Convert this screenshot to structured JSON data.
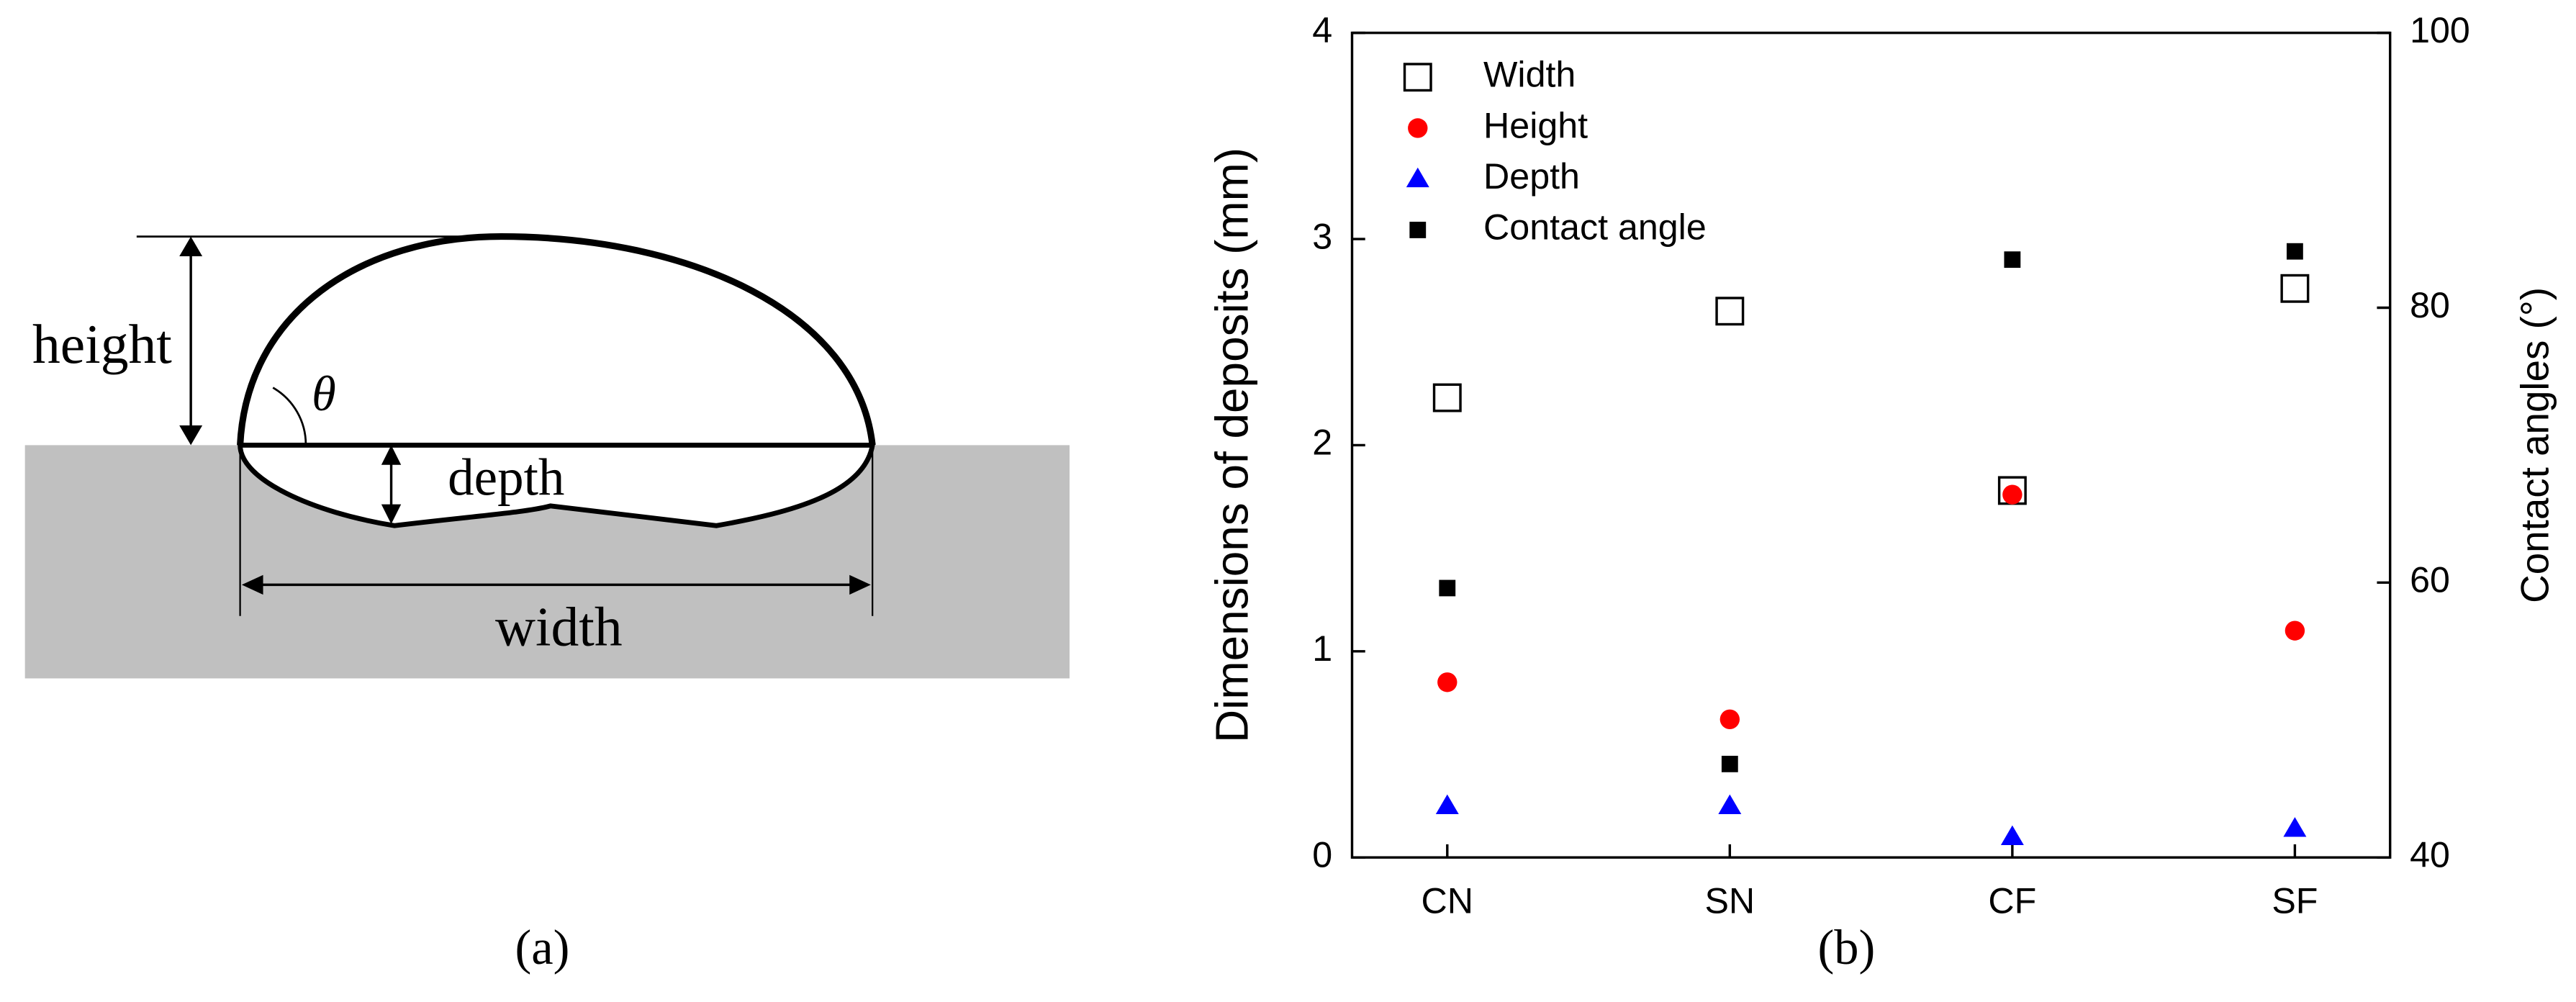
{
  "diagram": {
    "labels": {
      "height": "height",
      "angle": "θ",
      "depth": "depth",
      "width": "width"
    },
    "caption": "(a)"
  },
  "chart_data": {
    "type": "scatter",
    "caption": "(b)",
    "ylabel": "Dimensions of deposits (mm)",
    "y2label": "Contact angles (°)",
    "categories": [
      "CN",
      "SN",
      "CF",
      "SF"
    ],
    "ylim": [
      0,
      4
    ],
    "yticks": [
      0,
      1,
      2,
      3,
      4
    ],
    "y2lim": [
      40,
      100
    ],
    "y2ticks": [
      40,
      60,
      80,
      100
    ],
    "legend": "upper left",
    "series": [
      {
        "name": "Width",
        "color": "#000000",
        "marker": "square-open",
        "values": [
          2.23,
          2.65,
          1.78,
          2.76
        ]
      },
      {
        "name": "Height",
        "color": "#ff0000",
        "marker": "circle",
        "values": [
          0.85,
          0.67,
          1.76,
          1.1
        ]
      },
      {
        "name": "Depth",
        "color": "#0000ff",
        "marker": "triangle",
        "values": [
          0.25,
          0.25,
          0.1,
          0.14
        ]
      },
      {
        "name": "Contact angle",
        "color": "#000000",
        "marker": "square",
        "axis": "y2",
        "values": [
          59.6,
          46.8,
          83.5,
          84.1
        ]
      }
    ]
  }
}
